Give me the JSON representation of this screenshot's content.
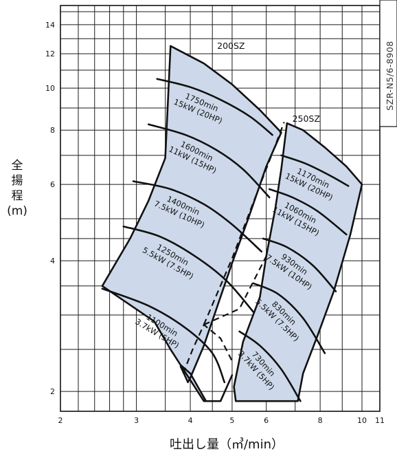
{
  "chart_data": {
    "type": "line",
    "title": "",
    "xlabel": "吐出し量（㎥/min）",
    "ylabel": [
      "全",
      "揚",
      "程",
      "(m)"
    ],
    "x_scale": "log",
    "y_scale": "log",
    "xlim": [
      2,
      11
    ],
    "ylim": [
      1.8,
      15.5
    ],
    "x_ticks": [
      2,
      3,
      4,
      5,
      6,
      8,
      10,
      11
    ],
    "x_tick_labels": [
      "2",
      "3",
      "4",
      "5",
      "6",
      "8",
      "10",
      "11"
    ],
    "y_ticks": [
      2,
      4,
      6,
      8,
      10,
      12,
      14
    ],
    "y_tick_labels": [
      "2",
      "4",
      "6",
      "8",
      "10",
      "12",
      "14"
    ],
    "x_grid": [
      2.2,
      2.4,
      2.6,
      2.8,
      3,
      3.5,
      4,
      4.5,
      5,
      6,
      7,
      8,
      9,
      10
    ],
    "y_grid": [
      2,
      2.5,
      3,
      3.5,
      4,
      4.5,
      5,
      6,
      7,
      8,
      9,
      10,
      11,
      12,
      13,
      14,
      15
    ],
    "grid": true,
    "document_code": "SZR-N5/6-8908",
    "regions": [
      {
        "name": "200SZ",
        "label": "200SZ",
        "outline": [
          [
            3.6,
            12.5
          ],
          [
            4.3,
            11.4
          ],
          [
            5.0,
            10.2
          ],
          [
            5.8,
            8.9
          ],
          [
            6.5,
            7.9
          ],
          [
            6.0,
            6.6
          ],
          [
            5.45,
            5.0
          ],
          [
            5.0,
            3.95
          ],
          [
            4.65,
            3.2
          ],
          [
            4.3,
            2.55
          ],
          [
            4.0,
            2.15
          ],
          [
            3.95,
            2.1
          ],
          [
            3.85,
            2.22
          ],
          [
            3.8,
            2.28
          ],
          [
            3.8,
            2.3
          ],
          [
            4.0,
            2.2
          ],
          [
            4.35,
            1.9
          ],
          [
            4.7,
            1.9
          ],
          [
            5.0,
            2.18
          ],
          [
            4.7,
            1.9
          ],
          [
            4.3,
            1.9
          ],
          [
            3.6,
            2.5
          ],
          [
            3.3,
            2.9
          ],
          [
            2.5,
            3.5
          ],
          [
            2.5,
            3.5
          ],
          [
            2.9,
            4.5
          ],
          [
            3.2,
            5.5
          ],
          [
            3.5,
            6.9
          ],
          [
            3.6,
            12.5
          ]
        ]
      },
      {
        "name": "250SZ",
        "label": "250SZ",
        "outline": [
          [
            6.7,
            8.3
          ],
          [
            7.3,
            8.0
          ],
          [
            8.2,
            7.3
          ],
          [
            9.2,
            6.6
          ],
          [
            10.0,
            6.0
          ],
          [
            9.4,
            4.6
          ],
          [
            8.6,
            3.4
          ],
          [
            7.9,
            2.7
          ],
          [
            7.3,
            2.2
          ],
          [
            7.1,
            1.9
          ],
          [
            5.1,
            1.9
          ],
          [
            5.05,
            2.05
          ],
          [
            5.3,
            2.6
          ],
          [
            5.8,
            3.3
          ],
          [
            6.0,
            4.1
          ],
          [
            6.3,
            5.3
          ],
          [
            6.5,
            6.5
          ],
          [
            6.7,
            8.3
          ]
        ]
      }
    ],
    "series": [
      {
        "name": "1750min⁻¹ 15kW (20HP)",
        "label_lines": [
          "1750min",
          "15kW (20HP)"
        ],
        "points": [
          [
            3.35,
            10.5
          ],
          [
            4.0,
            10.05
          ],
          [
            4.7,
            9.4
          ],
          [
            5.5,
            8.6
          ],
          [
            6.2,
            7.8
          ]
        ]
      },
      {
        "name": "1600min⁻¹ 11kW (15HP)",
        "label_lines": [
          "1600min",
          "11kW (15HP)"
        ],
        "points": [
          [
            3.2,
            8.25
          ],
          [
            3.9,
            7.8
          ],
          [
            4.6,
            7.2
          ],
          [
            5.3,
            6.5
          ],
          [
            6.1,
            5.6
          ]
        ]
      },
      {
        "name": "1400min⁻¹ 7.5kW (10HP)",
        "label_lines": [
          "1400min",
          "7.5kW (10HP)"
        ],
        "points": [
          [
            2.95,
            6.1
          ],
          [
            3.6,
            5.85
          ],
          [
            4.3,
            5.4
          ],
          [
            5.0,
            4.85
          ],
          [
            5.85,
            4.2
          ]
        ]
      },
      {
        "name": "1250min⁻¹ 5.5kW (7.5HP)",
        "label_lines": [
          "1250min",
          "5.5kW (7.5HP)"
        ],
        "points": [
          [
            2.8,
            4.8
          ],
          [
            3.4,
            4.55
          ],
          [
            4.1,
            4.1
          ],
          [
            4.85,
            3.6
          ],
          [
            5.6,
            3.05
          ]
        ]
      },
      {
        "name": "1100min⁻¹ 3.7kW (5HP)",
        "label_lines": [
          "1100min",
          "3.7kW (5HP)"
        ],
        "points": [
          [
            2.5,
            3.45
          ],
          [
            3.2,
            3.15
          ],
          [
            3.9,
            2.8
          ],
          [
            4.5,
            2.45
          ],
          [
            4.8,
            2.1
          ]
        ]
      },
      {
        "name": "1170min⁻¹ 15kW (20HP)",
        "label_lines": [
          "1170min",
          "15kW (20HP)"
        ],
        "points": [
          [
            6.5,
            7.0
          ],
          [
            7.4,
            6.7
          ],
          [
            8.4,
            6.3
          ],
          [
            9.3,
            5.95
          ]
        ]
      },
      {
        "name": "1060min⁻¹ 11kW (15HP)",
        "label_lines": [
          "1060min",
          "11kW (15HP)"
        ],
        "points": [
          [
            6.1,
            5.85
          ],
          [
            6.9,
            5.6
          ],
          [
            7.9,
            5.2
          ],
          [
            9.2,
            4.6
          ]
        ]
      },
      {
        "name": "930min⁻¹ 7.5kW (10HP)",
        "label_lines": [
          "930min",
          "7.5kW (10HP)"
        ],
        "points": [
          [
            5.9,
            4.5
          ],
          [
            6.7,
            4.3
          ],
          [
            7.7,
            3.9
          ],
          [
            8.7,
            3.4
          ]
        ]
      },
      {
        "name": "830min⁻¹ 5.5kW (7.5HP)",
        "label_lines": [
          "830min",
          "5.5kW (7.5HP)"
        ],
        "points": [
          [
            5.6,
            3.55
          ],
          [
            6.4,
            3.35
          ],
          [
            7.3,
            2.95
          ],
          [
            8.2,
            2.45
          ]
        ]
      },
      {
        "name": "730min⁻¹ 3.7kW (5HP)",
        "label_lines": [
          "730min",
          "3.7kW (5HP)"
        ],
        "points": [
          [
            5.2,
            2.75
          ],
          [
            5.8,
            2.55
          ],
          [
            6.5,
            2.25
          ],
          [
            7.2,
            1.9
          ]
        ]
      }
    ],
    "dashed_boundaries": [
      {
        "name": "200SZ-boundary",
        "points": [
          [
            4.3,
            2.85
          ],
          [
            5.0,
            4.05
          ],
          [
            5.6,
            5.45
          ],
          [
            6.05,
            6.65
          ],
          [
            6.6,
            8.35
          ]
        ]
      },
      {
        "name": "250SZ-boundary",
        "points": [
          [
            3.85,
            2.2
          ],
          [
            4.05,
            2.5
          ],
          [
            4.3,
            2.85
          ],
          [
            4.7,
            2.65
          ],
          [
            5.0,
            2.35
          ]
        ]
      },
      {
        "name": "crossover-line",
        "points": [
          [
            4.3,
            2.85
          ],
          [
            5.2,
            3.1
          ],
          [
            6.0,
            4.1
          ]
        ]
      }
    ]
  }
}
